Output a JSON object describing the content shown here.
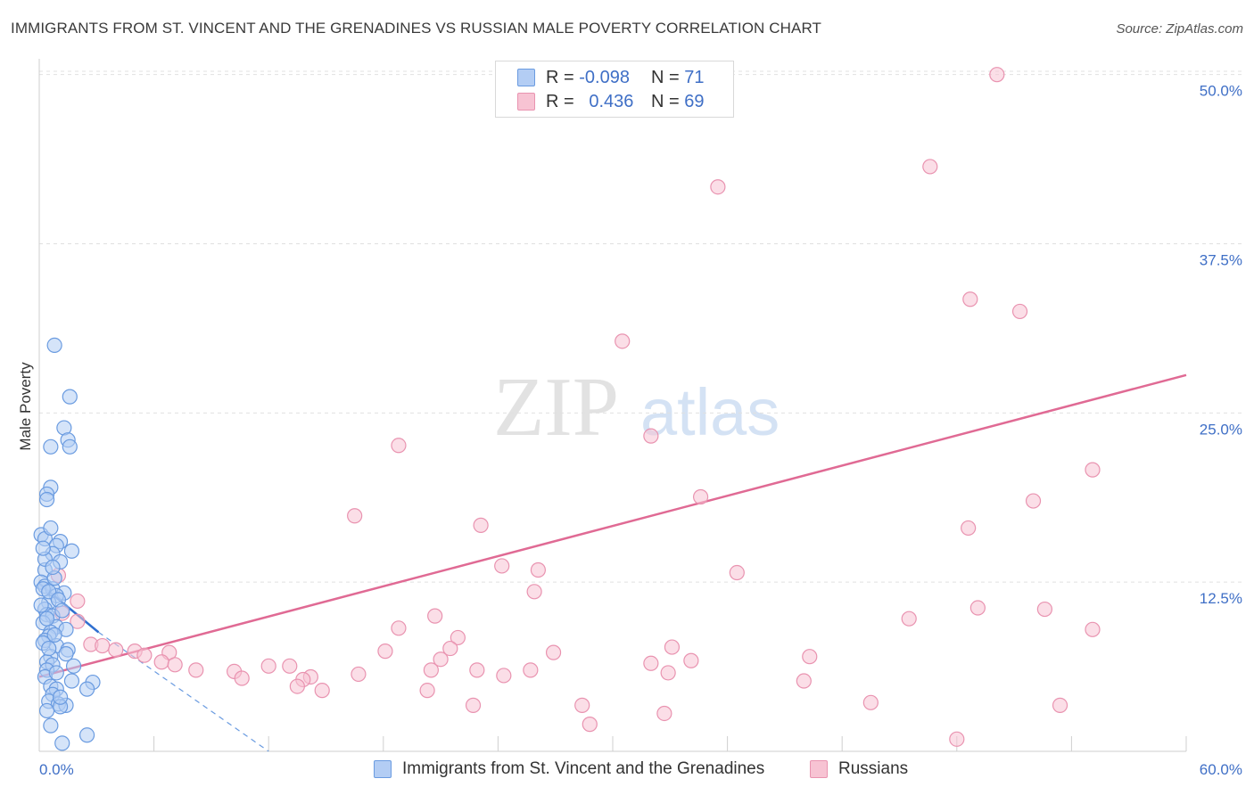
{
  "title": "IMMIGRANTS FROM ST. VINCENT AND THE GRENADINES VS RUSSIAN MALE POVERTY CORRELATION CHART",
  "source": "Source: ZipAtlas.com",
  "watermark": {
    "zip": "ZIP",
    "atlas": "atlas"
  },
  "legend": {
    "series1": {
      "r_label": "R =",
      "r_value": "-0.098",
      "n_label": "N =",
      "n_value": "71"
    },
    "series2": {
      "r_label": "R =",
      "r_value": "0.436",
      "n_label": "N =",
      "n_value": "69"
    }
  },
  "bottom_legend": {
    "series1": "Immigrants from St. Vincent and the Grenadines",
    "series2": "Russians"
  },
  "colors": {
    "blue_fill": "#b3cdf4",
    "blue_stroke": "#6a9be0",
    "blue_line": "#2f6fd0",
    "pink_fill": "#f7c3d3",
    "pink_stroke": "#e993b0",
    "pink_line": "#e06a94",
    "axis_text": "#3f6fc6",
    "grid": "#e0e0e0"
  },
  "chart_data": {
    "type": "scatter",
    "title": "IMMIGRANTS FROM ST. VINCENT AND THE GRENADINES VS RUSSIAN MALE POVERTY CORRELATION CHART",
    "xlabel": "",
    "ylabel": "Male Poverty",
    "xlim": [
      0,
      60
    ],
    "ylim": [
      0,
      50.9
    ],
    "x_tick_labels": [
      "0.0%",
      "60.0%"
    ],
    "y_ticks": [
      12.5,
      25.0,
      37.5,
      50.0
    ],
    "y_tick_labels": [
      "12.5%",
      "25.0%",
      "37.5%",
      "50.0%"
    ],
    "series": [
      {
        "name": "Immigrants from St. Vincent and the Grenadines",
        "color": "blue",
        "trend": {
          "x0": 0,
          "y0": 12.4,
          "x1": 3.1,
          "y1": 8.8
        },
        "trend_extension": {
          "x0": 3.1,
          "y0": 8.8,
          "x1": 12.0,
          "y1": 0
        },
        "points": [
          [
            0.8,
            30.0
          ],
          [
            1.6,
            26.2
          ],
          [
            1.3,
            23.9
          ],
          [
            1.5,
            23.0
          ],
          [
            0.6,
            22.5
          ],
          [
            1.6,
            22.5
          ],
          [
            0.6,
            19.5
          ],
          [
            0.4,
            19.0
          ],
          [
            0.4,
            18.6
          ],
          [
            0.1,
            16.0
          ],
          [
            0.3,
            15.7
          ],
          [
            1.1,
            15.5
          ],
          [
            0.9,
            15.2
          ],
          [
            1.7,
            14.8
          ],
          [
            0.7,
            14.6
          ],
          [
            1.1,
            14.0
          ],
          [
            0.3,
            13.4
          ],
          [
            0.1,
            12.5
          ],
          [
            0.3,
            12.2
          ],
          [
            0.7,
            12.0
          ],
          [
            1.3,
            11.7
          ],
          [
            0.9,
            11.5
          ],
          [
            0.5,
            11.0
          ],
          [
            0.3,
            10.5
          ],
          [
            0.4,
            10.1
          ],
          [
            0.7,
            10.0
          ],
          [
            0.2,
            9.5
          ],
          [
            0.9,
            9.2
          ],
          [
            1.4,
            9.0
          ],
          [
            0.6,
            8.8
          ],
          [
            0.5,
            8.5
          ],
          [
            0.3,
            8.2
          ],
          [
            0.9,
            7.8
          ],
          [
            1.5,
            7.5
          ],
          [
            1.4,
            7.2
          ],
          [
            0.6,
            7.0
          ],
          [
            0.4,
            6.6
          ],
          [
            0.7,
            6.4
          ],
          [
            1.8,
            6.3
          ],
          [
            0.4,
            6.0
          ],
          [
            0.3,
            5.5
          ],
          [
            1.7,
            5.2
          ],
          [
            2.8,
            5.1
          ],
          [
            0.6,
            4.8
          ],
          [
            0.9,
            4.6
          ],
          [
            2.5,
            4.6
          ],
          [
            0.7,
            4.2
          ],
          [
            0.5,
            3.7
          ],
          [
            1.0,
            3.5
          ],
          [
            1.4,
            3.4
          ],
          [
            1.1,
            3.3
          ],
          [
            0.6,
            1.9
          ],
          [
            2.5,
            1.2
          ],
          [
            1.2,
            0.6
          ],
          [
            0.2,
            12.0
          ],
          [
            0.5,
            11.8
          ],
          [
            0.1,
            10.8
          ],
          [
            0.4,
            9.8
          ],
          [
            0.8,
            8.6
          ],
          [
            0.2,
            8.0
          ],
          [
            1.0,
            11.2
          ],
          [
            0.3,
            14.2
          ],
          [
            0.6,
            16.5
          ],
          [
            0.2,
            15.0
          ],
          [
            0.8,
            12.8
          ],
          [
            1.2,
            10.4
          ],
          [
            0.5,
            7.6
          ],
          [
            0.9,
            5.8
          ],
          [
            1.1,
            4.0
          ],
          [
            0.4,
            3.0
          ],
          [
            0.7,
            13.6
          ]
        ]
      },
      {
        "name": "Russians",
        "color": "pink",
        "trend": {
          "x0": 0,
          "y0": 5.5,
          "x1": 60,
          "y1": 27.8
        },
        "points": [
          [
            50.1,
            50.0
          ],
          [
            46.6,
            43.2
          ],
          [
            35.5,
            41.7
          ],
          [
            48.7,
            33.4
          ],
          [
            51.3,
            32.5
          ],
          [
            30.5,
            30.3
          ],
          [
            32.0,
            23.3
          ],
          [
            18.8,
            22.6
          ],
          [
            55.1,
            20.8
          ],
          [
            34.6,
            18.8
          ],
          [
            52.0,
            18.5
          ],
          [
            16.5,
            17.4
          ],
          [
            23.1,
            16.7
          ],
          [
            48.6,
            16.5
          ],
          [
            24.2,
            13.7
          ],
          [
            26.1,
            13.4
          ],
          [
            36.5,
            13.2
          ],
          [
            1.0,
            13.0
          ],
          [
            25.9,
            11.8
          ],
          [
            2.0,
            11.1
          ],
          [
            49.1,
            10.6
          ],
          [
            52.6,
            10.5
          ],
          [
            1.2,
            10.2
          ],
          [
            20.7,
            10.0
          ],
          [
            45.5,
            9.8
          ],
          [
            2.0,
            9.6
          ],
          [
            18.8,
            9.1
          ],
          [
            55.1,
            9.0
          ],
          [
            21.9,
            8.4
          ],
          [
            2.7,
            7.9
          ],
          [
            3.3,
            7.8
          ],
          [
            21.5,
            7.6
          ],
          [
            33.1,
            7.7
          ],
          [
            4.0,
            7.5
          ],
          [
            5.0,
            7.4
          ],
          [
            18.1,
            7.4
          ],
          [
            26.9,
            7.3
          ],
          [
            40.3,
            7.0
          ],
          [
            6.8,
            7.3
          ],
          [
            5.5,
            7.1
          ],
          [
            21.0,
            6.8
          ],
          [
            34.1,
            6.7
          ],
          [
            6.4,
            6.6
          ],
          [
            32.0,
            6.5
          ],
          [
            7.1,
            6.4
          ],
          [
            12.0,
            6.3
          ],
          [
            13.1,
            6.3
          ],
          [
            20.5,
            6.0
          ],
          [
            10.2,
            5.9
          ],
          [
            22.9,
            6.0
          ],
          [
            25.7,
            6.0
          ],
          [
            24.3,
            5.6
          ],
          [
            16.7,
            5.7
          ],
          [
            10.6,
            5.4
          ],
          [
            14.2,
            5.5
          ],
          [
            8.2,
            6.0
          ],
          [
            13.8,
            5.3
          ],
          [
            13.5,
            4.8
          ],
          [
            32.9,
            5.8
          ],
          [
            14.8,
            4.5
          ],
          [
            20.3,
            4.5
          ],
          [
            43.5,
            3.6
          ],
          [
            53.4,
            3.4
          ],
          [
            28.4,
            3.4
          ],
          [
            22.7,
            3.4
          ],
          [
            32.7,
            2.8
          ],
          [
            28.8,
            2.0
          ],
          [
            48.0,
            0.9
          ],
          [
            40.0,
            5.2
          ]
        ]
      }
    ]
  }
}
